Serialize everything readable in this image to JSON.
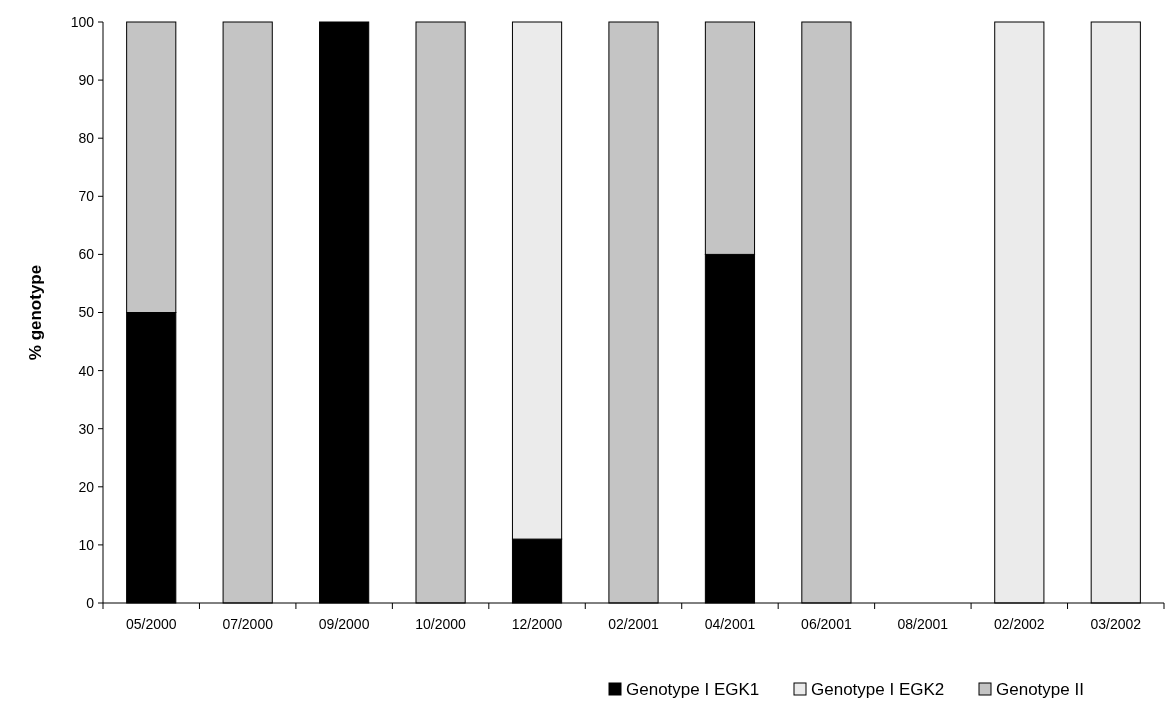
{
  "chart_data": {
    "type": "bar",
    "stacked": true,
    "ylabel": "% genotype",
    "categories": [
      "05/2000",
      "07/2000",
      "09/2000",
      "10/2000",
      "12/2000",
      "02/2001",
      "04/2001",
      "06/2001",
      "08/2001",
      "02/2002",
      "03/2002"
    ],
    "series": [
      {
        "name": "Genotype I EGK1",
        "color": "#000000",
        "values": [
          50,
          0,
          100,
          0,
          11,
          0,
          60,
          0,
          0,
          0,
          0
        ]
      },
      {
        "name": "Genotype I EGK2",
        "color": "#ebebeb",
        "values": [
          0,
          0,
          0,
          0,
          89,
          0,
          0,
          0,
          0,
          100,
          100
        ]
      },
      {
        "name": "Genotype II",
        "color": "#c4c4c4",
        "values": [
          50,
          100,
          0,
          100,
          0,
          100,
          40,
          100,
          0,
          0,
          0
        ]
      }
    ],
    "ylim": [
      0,
      100
    ],
    "yticks": [
      0,
      10,
      20,
      30,
      40,
      50,
      60,
      70,
      80,
      90,
      100
    ],
    "legend": "bottom right"
  }
}
